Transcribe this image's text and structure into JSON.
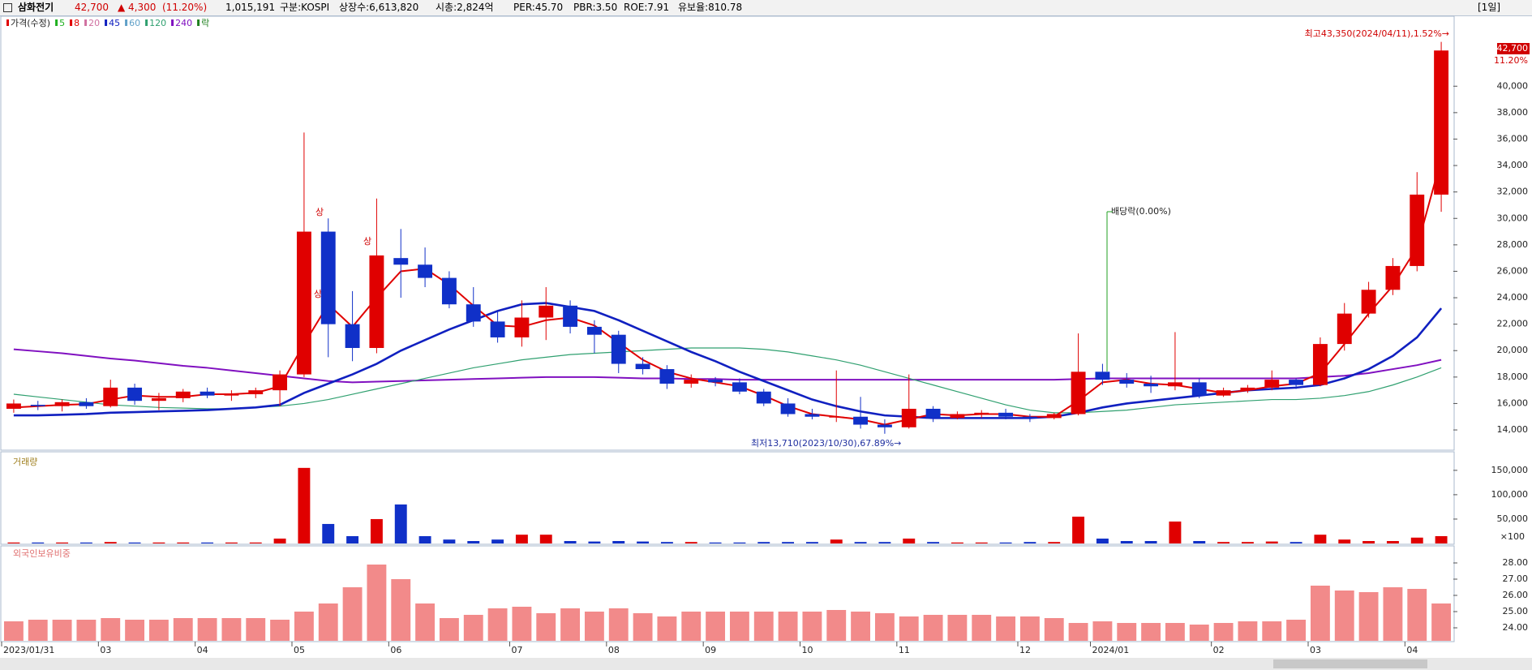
{
  "header": {
    "name": "삼화전기",
    "price": "42,700",
    "change": "▲ 4,300",
    "change_pct": "(11.20%)",
    "volume": "1,015,191",
    "market": "구분:KOSPI",
    "shares": "상장수:6,613,820",
    "market_cap": "시총:2,824억",
    "per": "PER:45.70",
    "pbr": "PBR:3.50",
    "roe": "ROE:7.91",
    "reserve_ratio": "유보율:810.78",
    "period": "[1일]"
  },
  "chart_data": [
    {
      "type": "candlestick",
      "categories": [
        "2023/01/31",
        null,
        null,
        null,
        "03",
        null,
        null,
        null,
        "04",
        null,
        null,
        null,
        "05",
        null,
        null,
        null,
        "06",
        null,
        null,
        null,
        null,
        "07",
        null,
        null,
        null,
        "08",
        null,
        null,
        null,
        "09",
        null,
        null,
        null,
        "10",
        null,
        null,
        null,
        "11",
        null,
        null,
        null,
        null,
        "12",
        null,
        null,
        "2024/01",
        null,
        null,
        null,
        null,
        "02",
        null,
        null,
        null,
        "03",
        null,
        null,
        null,
        "04",
        null
      ],
      "open": [
        15600,
        15900,
        15800,
        16100,
        15800,
        17200,
        16200,
        16400,
        16900,
        16600,
        16700,
        17000,
        18200,
        29000,
        22000,
        20200,
        27000,
        26500,
        25500,
        23500,
        22200,
        21000,
        22500,
        23400,
        21800,
        21200,
        19000,
        18600,
        17500,
        17800,
        17600,
        16900,
        16000,
        15200,
        15000,
        15000,
        14400,
        14200,
        15600,
        14900,
        15200,
        15300,
        15000,
        14900,
        15200,
        18400,
        17800,
        17500,
        17300,
        17600,
        16600,
        17000,
        17200,
        17800,
        17400,
        20500,
        22800,
        24600,
        26400,
        31800
      ],
      "high": [
        16300,
        16200,
        16300,
        16400,
        17800,
        17500,
        16800,
        17100,
        17200,
        17000,
        17200,
        18500,
        36500,
        30000,
        24500,
        31500,
        29200,
        27800,
        26000,
        24800,
        23000,
        23800,
        24800,
        23800,
        22300,
        21500,
        19500,
        18900,
        18200,
        18000,
        17900,
        17100,
        16400,
        15600,
        18500,
        16500,
        14800,
        18200,
        15800,
        15400,
        15500,
        15600,
        15200,
        15300,
        21300,
        19000,
        18300,
        18100,
        21400,
        17900,
        17200,
        17400,
        18500,
        17900,
        21000,
        23600,
        25200,
        27000,
        33500,
        43350
      ],
      "low": [
        15300,
        15500,
        15400,
        15600,
        15700,
        15900,
        15500,
        16100,
        16400,
        16200,
        16400,
        15800,
        18000,
        19500,
        19200,
        19800,
        24000,
        24800,
        23200,
        21800,
        20600,
        20300,
        20800,
        21300,
        19800,
        18300,
        18200,
        17100,
        17200,
        17300,
        16700,
        15800,
        15000,
        14800,
        14600,
        14100,
        13710,
        14100,
        14600,
        14800,
        14900,
        14800,
        14600,
        14800,
        15100,
        17400,
        17200,
        16800,
        17000,
        16400,
        16500,
        16800,
        17000,
        17100,
        17300,
        20000,
        22500,
        24200,
        26000,
        30500
      ],
      "close": [
        16000,
        15800,
        16100,
        15800,
        17200,
        16200,
        16400,
        16900,
        16600,
        16700,
        17000,
        18200,
        29000,
        22000,
        20200,
        27200,
        26500,
        25500,
        23500,
        22200,
        21000,
        22500,
        23400,
        21800,
        21200,
        19000,
        18600,
        17500,
        17800,
        17600,
        16900,
        16000,
        15200,
        15000,
        15000,
        14400,
        14200,
        15600,
        14900,
        15200,
        15300,
        15000,
        14900,
        15200,
        18400,
        17800,
        17500,
        17300,
        17600,
        16600,
        17000,
        17200,
        17800,
        17400,
        20500,
        22800,
        24600,
        26400,
        31800,
        42700
      ],
      "up_color": "#e00000",
      "down_color": "#1030c8",
      "legend": [
        {
          "name": "가격(수정)",
          "color": "#e00000"
        },
        {
          "name": "5",
          "color": "#20b020"
        },
        {
          "name": "8",
          "color": "#e00000"
        },
        {
          "name": "20",
          "color": "#d070a0"
        },
        {
          "name": "45",
          "color": "#1020c0"
        },
        {
          "name": "60",
          "color": "#60a0c8"
        },
        {
          "name": "120",
          "color": "#30a070"
        },
        {
          "name": "240",
          "color": "#8010c0"
        },
        {
          "name": "락",
          "color": "#208020"
        }
      ],
      "series": [
        {
          "legend": 7,
          "values": [
            20100,
            19950,
            19800,
            19600,
            19400,
            19250,
            19050,
            18850,
            18700,
            18500,
            18300,
            18100,
            17900,
            17700,
            17600,
            17650,
            17700,
            17750,
            17800,
            17850,
            17900,
            17950,
            18000,
            18000,
            18000,
            17950,
            17900,
            17900,
            17850,
            17850,
            17800,
            17800,
            17800,
            17800,
            17800,
            17800,
            17800,
            17800,
            17800,
            17800,
            17800,
            17800,
            17800,
            17800,
            17850,
            17900,
            17900,
            17900,
            17900,
            17900,
            17900,
            17900,
            17900,
            17900,
            18000,
            18100,
            18300,
            18600,
            18900,
            19300
          ]
        },
        {
          "legend": 6,
          "values": [
            16700,
            16500,
            16300,
            16100,
            15900,
            15800,
            15700,
            15650,
            15600,
            15600,
            15700,
            15800,
            16000,
            16300,
            16700,
            17100,
            17500,
            17900,
            18300,
            18700,
            19000,
            19300,
            19500,
            19700,
            19800,
            19900,
            20000,
            20100,
            20200,
            20200,
            20200,
            20100,
            19900,
            19600,
            19300,
            18900,
            18400,
            17900,
            17400,
            16900,
            16400,
            15900,
            15500,
            15300,
            15300,
            15400,
            15500,
            15700,
            15900,
            16000,
            16100,
            16200,
            16300,
            16300,
            16400,
            16600,
            16900,
            17400,
            18000,
            18700
          ]
        },
        {
          "legend": 4,
          "values": [
            15100,
            15100,
            15150,
            15200,
            15300,
            15350,
            15400,
            15450,
            15500,
            15600,
            15700,
            15900,
            16800,
            17500,
            18200,
            19000,
            20000,
            20800,
            21600,
            22300,
            23000,
            23500,
            23600,
            23300,
            23000,
            22300,
            21500,
            20700,
            19900,
            19200,
            18400,
            17700,
            17000,
            16300,
            15800,
            15400,
            15100,
            15000,
            14900,
            14900,
            14900,
            14900,
            14900,
            15000,
            15300,
            15700,
            16000,
            16200,
            16400,
            16600,
            16800,
            17000,
            17100,
            17200,
            17400,
            17900,
            18600,
            19600,
            21000,
            23200
          ]
        },
        {
          "legend": 2,
          "values": [
            15700,
            15800,
            15900,
            15950,
            16300,
            16600,
            16500,
            16500,
            16700,
            16700,
            16800,
            17300,
            20500,
            23500,
            21800,
            24000,
            26000,
            26200,
            25000,
            23400,
            21900,
            21800,
            22300,
            22500,
            21900,
            20600,
            19300,
            18400,
            17900,
            17600,
            17300,
            16600,
            15800,
            15200,
            15000,
            14800,
            14400,
            14800,
            15200,
            15100,
            15200,
            15200,
            15000,
            15000,
            16200,
            17600,
            17800,
            17500,
            17400,
            17100,
            16800,
            17000,
            17300,
            17500,
            18300,
            20500,
            22800,
            24900,
            27800,
            34500
          ]
        }
      ],
      "ylim": [
        12530,
        45170
      ],
      "yticks": [
        {
          "value": 14000,
          "label": "14,000"
        },
        {
          "value": 16000,
          "label": "16,000"
        },
        {
          "value": 18000,
          "label": "18,000"
        },
        {
          "value": 20000,
          "label": "20,000"
        },
        {
          "value": 22000,
          "label": "22,000"
        },
        {
          "value": 24000,
          "label": "24,000"
        },
        {
          "value": 26000,
          "label": "26,000"
        },
        {
          "value": 28000,
          "label": "28,000"
        },
        {
          "value": 30000,
          "label": "30,000"
        },
        {
          "value": 32000,
          "label": "32,000"
        },
        {
          "value": 34000,
          "label": "34,000"
        },
        {
          "value": 36000,
          "label": "36,000"
        },
        {
          "value": 38000,
          "label": "38,000"
        },
        {
          "value": 40000,
          "label": "40,000"
        }
      ],
      "grid": false,
      "current_label": "11.20%",
      "annotations": {
        "high": "최고43,350(2024/04/11),1.52%→",
        "low": "최저13,710(2023/10/30),67.89%→",
        "dividend": "배당락(0.00%)",
        "limit_up": [
          "상",
          "상",
          "상"
        ]
      }
    },
    {
      "type": "bar",
      "title": "거래량",
      "unit_label": "×100",
      "values": [
        2000,
        2000,
        2000,
        2000,
        3000,
        2000,
        2000,
        2000,
        2000,
        2000,
        2000,
        10000,
        155000,
        40000,
        15000,
        50000,
        80000,
        15000,
        8000,
        5000,
        8000,
        18000,
        18000,
        5000,
        4000,
        5000,
        4000,
        3000,
        3000,
        2000,
        2000,
        3000,
        3000,
        3000,
        8000,
        3000,
        3000,
        10000,
        3000,
        2000,
        2000,
        2000,
        3000,
        3000,
        55000,
        10000,
        5000,
        5000,
        45000,
        5000,
        3000,
        3000,
        4000,
        3000,
        18000,
        8000,
        5000,
        5000,
        12000,
        15000
      ],
      "ylim": [
        0,
        188000
      ],
      "yticks": [
        {
          "value": 50000,
          "label": "50,000"
        },
        {
          "value": 100000,
          "label": "100,000"
        },
        {
          "value": 150000,
          "label": "150,000"
        }
      ]
    },
    {
      "type": "bar",
      "title": "외국인보유비중",
      "color": "#f28a8a",
      "values": [
        24.4,
        24.5,
        24.5,
        24.5,
        24.6,
        24.5,
        24.5,
        24.6,
        24.6,
        24.6,
        24.6,
        24.5,
        25.0,
        25.5,
        26.5,
        27.9,
        27.0,
        25.5,
        24.6,
        24.8,
        25.2,
        25.3,
        24.9,
        25.2,
        25.0,
        25.2,
        24.9,
        24.7,
        25.0,
        25.0,
        25.0,
        25.0,
        25.0,
        25.0,
        25.1,
        25.0,
        24.9,
        24.7,
        24.8,
        24.8,
        24.8,
        24.7,
        24.7,
        24.6,
        24.3,
        24.4,
        24.3,
        24.3,
        24.3,
        24.2,
        24.3,
        24.4,
        24.4,
        24.5,
        26.6,
        26.3,
        26.2,
        26.5,
        26.4,
        25.5
      ],
      "ylim": [
        23.2,
        28.95
      ],
      "yticks": [
        {
          "value": 24,
          "label": "24.00"
        },
        {
          "value": 25,
          "label": "25.00"
        },
        {
          "value": 26,
          "label": "26.00"
        },
        {
          "value": 27,
          "label": "27.00"
        },
        {
          "value": 28,
          "label": "28.00"
        }
      ]
    }
  ]
}
